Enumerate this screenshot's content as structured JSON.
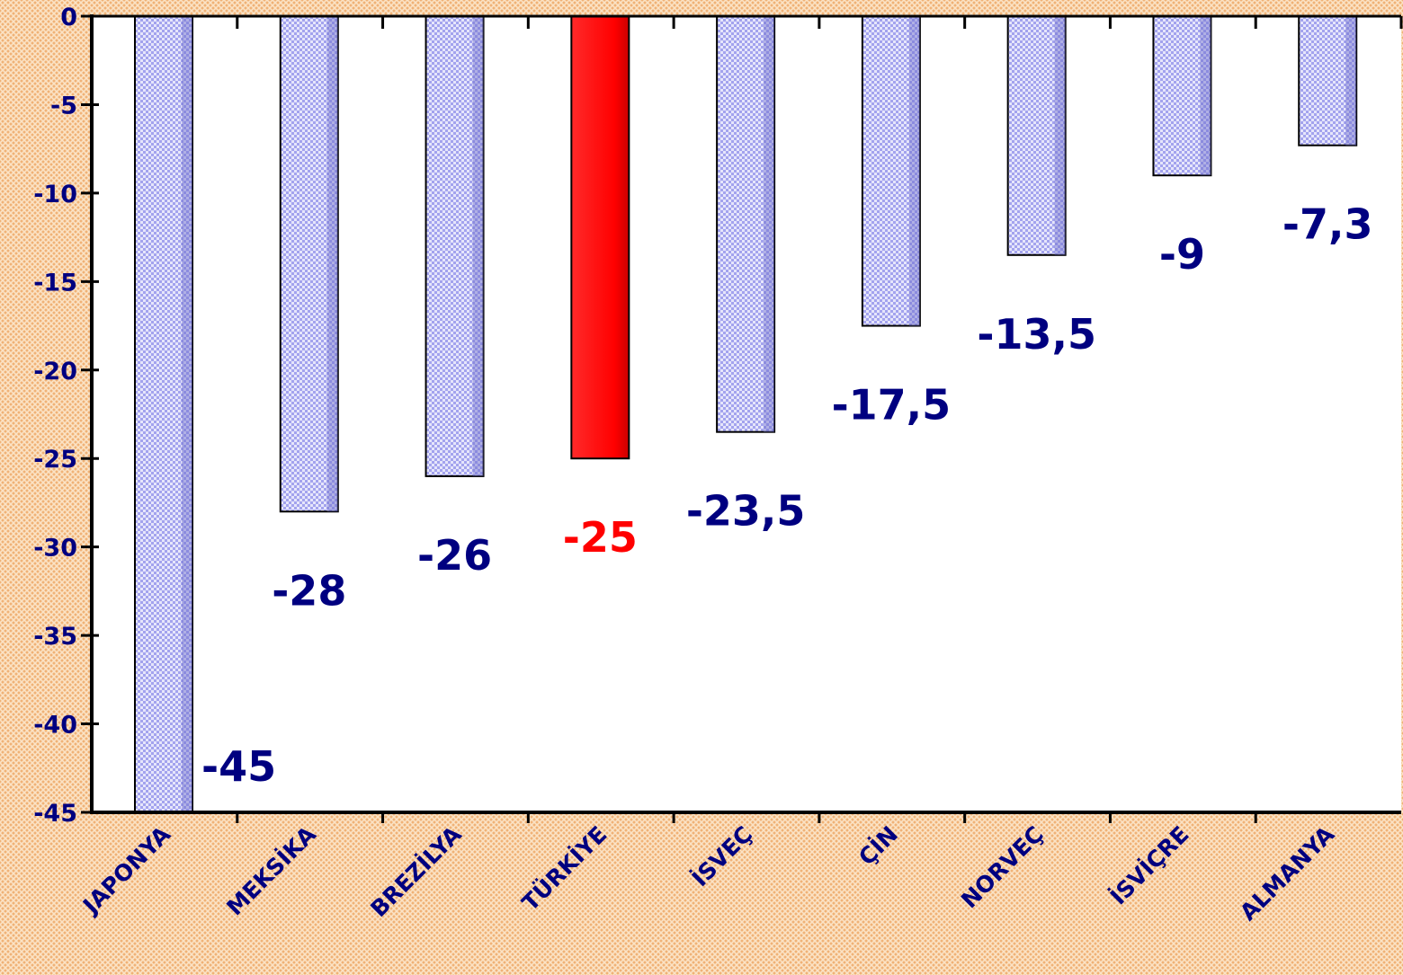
{
  "chart_data": {
    "type": "bar",
    "categories": [
      "JAPONYA",
      "MEKSİKA",
      "BREZİLYA",
      "TÜRKİYE",
      "İSVEÇ",
      "ÇİN",
      "NORVEÇ",
      "İSVİÇRE",
      "ALMANYA"
    ],
    "values": [
      -45,
      -28,
      -26,
      -25,
      -23.5,
      -17.5,
      -13.5,
      -9,
      -7.3
    ],
    "value_labels": [
      "-45",
      "-28",
      "-26",
      "-25",
      "-23,5",
      "-17,5",
      "-13,5",
      "-9",
      "-7,3"
    ],
    "y_ticks": [
      "0",
      "-5",
      "-10",
      "-15",
      "-20",
      "-25",
      "-30",
      "-35",
      "-40",
      "-45"
    ],
    "ylim": [
      -45,
      0
    ],
    "highlight_category": "TÜRKİYE",
    "grid": false,
    "legend": "none",
    "colors": {
      "bar": "#a3a3ee",
      "bar_dot": "#e6e6fb",
      "bar_shade": "#6f6fc9",
      "highlight": "#ff0000",
      "label": "#000080",
      "highlight_label": "#ff0000",
      "plot_bg": "#ffffff",
      "page_bg": "#fbe3c6"
    }
  }
}
